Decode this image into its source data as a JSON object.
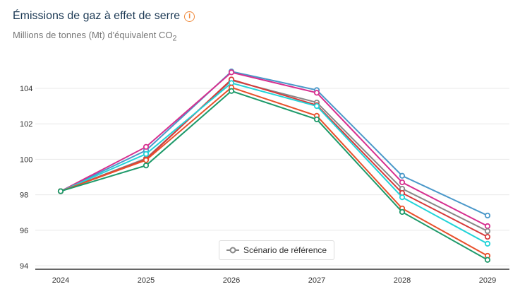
{
  "header": {
    "title": "Émissions de gaz à effet de serre",
    "info_icon": "info-icon",
    "subtitle_prefix": "Millions de tonnes (Mt) d'équivalent CO",
    "subtitle_sub": "2"
  },
  "legend": {
    "label": "Scénario de référence",
    "color": "#888888"
  },
  "chart_data": {
    "type": "line",
    "x": [
      2024,
      2025,
      2026,
      2027,
      2028,
      2029
    ],
    "yticks": [
      94,
      96,
      98,
      100,
      102,
      104
    ],
    "ylim": [
      93.8,
      106.2
    ],
    "grid": true,
    "legend_placement": "bottom-center",
    "series": [
      {
        "color": "#4a98c9",
        "values": [
          98.2,
          100.5,
          104.95,
          103.9,
          99.07,
          96.83
        ]
      },
      {
        "color": "#d6308f",
        "values": [
          98.2,
          100.7,
          104.9,
          103.75,
          98.7,
          96.23
        ]
      },
      {
        "name": "Scénario de référence",
        "color": "#888888",
        "values": [
          98.2,
          100.05,
          104.45,
          103.2,
          98.34,
          95.95
        ]
      },
      {
        "color": "#d63a3a",
        "values": [
          98.2,
          100.0,
          104.5,
          103.05,
          98.1,
          95.63
        ]
      },
      {
        "color": "#22d3d8",
        "values": [
          98.2,
          100.3,
          104.3,
          103.0,
          97.86,
          95.24
        ]
      },
      {
        "color": "#e8502c",
        "values": [
          98.2,
          99.95,
          104.05,
          102.45,
          97.23,
          94.56
        ]
      },
      {
        "color": "#1e9a6a",
        "values": [
          98.2,
          99.65,
          103.85,
          102.25,
          97.03,
          94.33
        ]
      }
    ]
  }
}
